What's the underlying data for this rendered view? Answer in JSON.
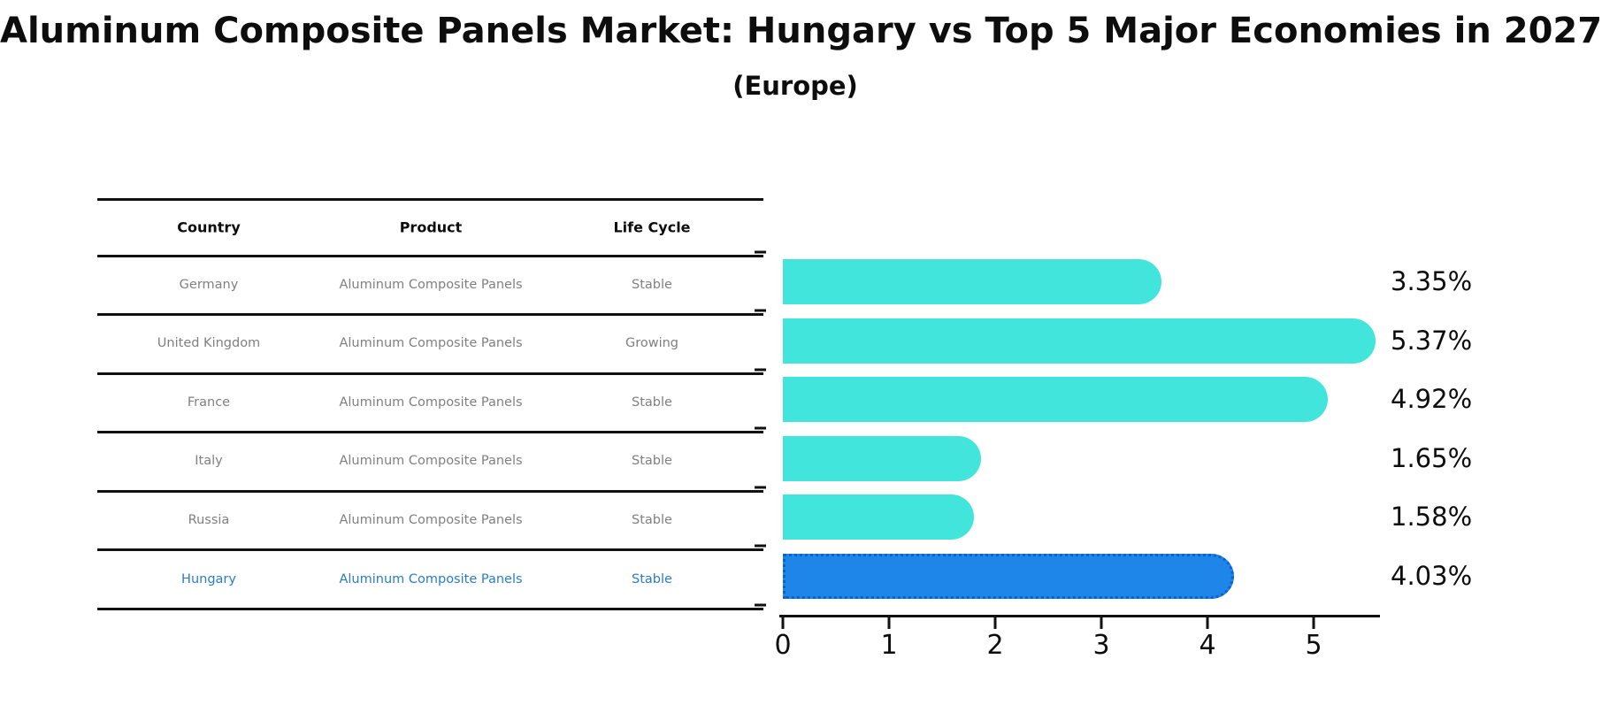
{
  "title": "Aluminum Composite Panels Market: Hungary vs Top 5 Major Economies in 2027",
  "subtitle": "(Europe)",
  "table": {
    "headers": [
      "Country",
      "Product",
      "Life Cycle"
    ],
    "rows": [
      {
        "country": "Germany",
        "product": "Aluminum Composite Panels",
        "life_cycle": "Stable",
        "highlight": false
      },
      {
        "country": "United Kingdom",
        "product": "Aluminum Composite Panels",
        "life_cycle": "Growing",
        "highlight": false
      },
      {
        "country": "France",
        "product": "Aluminum Composite Panels",
        "life_cycle": "Stable",
        "highlight": false
      },
      {
        "country": "Italy",
        "product": "Aluminum Composite Panels",
        "life_cycle": "Stable",
        "highlight": false
      },
      {
        "country": "Russia",
        "product": "Aluminum Composite Panels",
        "life_cycle": "Stable",
        "highlight": false
      },
      {
        "country": "Hungary",
        "product": "Aluminum Composite Panels",
        "life_cycle": "Stable",
        "highlight": true
      }
    ]
  },
  "chart_data": {
    "type": "bar",
    "orientation": "horizontal",
    "title": "Aluminum Composite Panels Market: Hungary vs Top 5 Major Economies in 2027 (Europe)",
    "categories": [
      "Germany",
      "United Kingdom",
      "France",
      "Italy",
      "Russia",
      "Hungary"
    ],
    "values": [
      3.35,
      5.37,
      4.92,
      1.65,
      1.58,
      4.03
    ],
    "labels": [
      "3.35%",
      "5.37%",
      "4.92%",
      "1.65%",
      "1.58%",
      "4.03%"
    ],
    "x_ticks": [
      "0",
      "1",
      "2",
      "3",
      "4",
      "5"
    ],
    "xlim": [
      0,
      5.6
    ],
    "grid": false,
    "legend": false,
    "bar_color": "#42E5DC",
    "highlight_index": 5,
    "highlight_bar_color": "#1E86E8",
    "highlight_bar_border_color": "#0E5FD0",
    "highlight_text_color": "#2B7CC9",
    "value_label_color": "#0d0d0d"
  }
}
